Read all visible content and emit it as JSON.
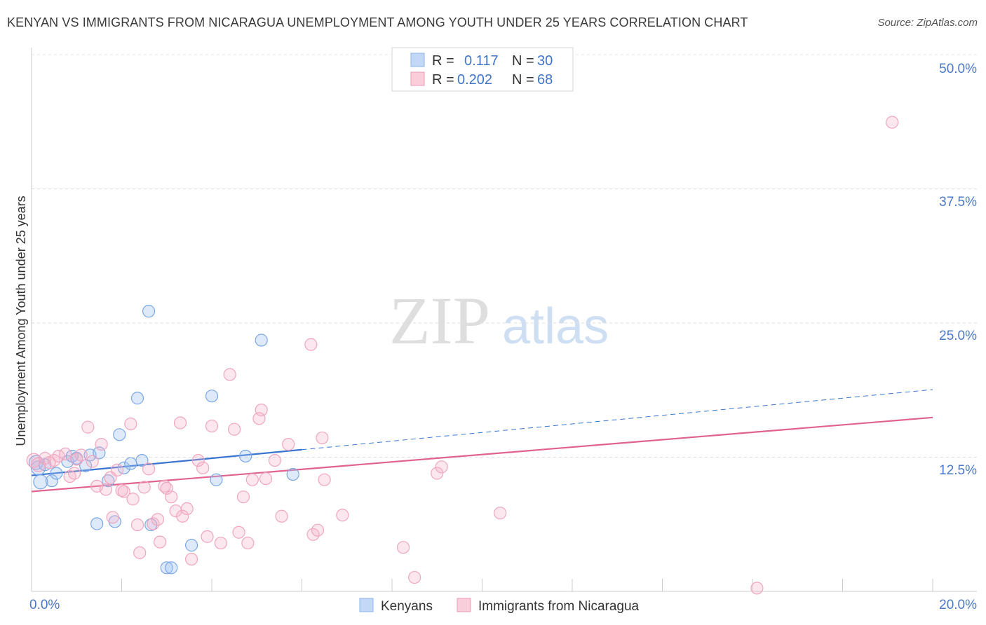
{
  "title": "KENYAN VS IMMIGRANTS FROM NICARAGUA UNEMPLOYMENT AMONG YOUTH UNDER 25 YEARS CORRELATION CHART",
  "source": "Source: ZipAtlas.com",
  "chart_data": {
    "type": "scatter",
    "ylabel": "Unemployment Among Youth under 25 years",
    "xlim": [
      0,
      20
    ],
    "ylim": [
      0,
      50
    ],
    "x_tick_labels": [
      "0.0%",
      "20.0%"
    ],
    "y_ticks": [
      12.5,
      25.0,
      37.5,
      50.0
    ],
    "y_tick_labels": [
      "12.5%",
      "25.0%",
      "37.5%",
      "50.0%"
    ],
    "watermark": {
      "zip": "ZIP",
      "atlas": "atlas"
    },
    "legend": {
      "r_label": "R =",
      "n_label": "N =",
      "entries": [
        {
          "name": "Kenyans",
          "r": "0.117",
          "n": "30",
          "color": "#8fb4ea",
          "fill": "#c3d8f6"
        },
        {
          "name": "Immigrants from Nicaragua",
          "r": "0.202",
          "n": "68",
          "color": "#ee9bb5",
          "fill": "#f9cdda"
        }
      ]
    },
    "series": [
      {
        "name": "Kenyans",
        "color": "#7aa7e6",
        "line_color": "#3a74d0",
        "trend": {
          "x0": 0,
          "y0": 10.8,
          "x1": 6.0,
          "y1": 13.2,
          "dash_x1": 20,
          "dash_y1": 18.8
        },
        "points": [
          [
            0.1,
            12.0
          ],
          [
            0.15,
            11.5
          ],
          [
            0.2,
            10.2
          ],
          [
            0.3,
            11.8
          ],
          [
            0.45,
            10.3
          ],
          [
            0.55,
            11.0
          ],
          [
            0.8,
            12.1
          ],
          [
            0.9,
            12.6
          ],
          [
            1.0,
            12.4
          ],
          [
            1.2,
            11.7
          ],
          [
            1.3,
            12.7
          ],
          [
            1.5,
            12.9
          ],
          [
            1.45,
            6.3
          ],
          [
            1.7,
            10.3
          ],
          [
            1.85,
            6.5
          ],
          [
            1.95,
            14.6
          ],
          [
            2.05,
            11.5
          ],
          [
            2.2,
            11.9
          ],
          [
            2.35,
            18.0
          ],
          [
            2.45,
            12.2
          ],
          [
            2.6,
            26.1
          ],
          [
            2.65,
            6.2
          ],
          [
            3.0,
            2.2
          ],
          [
            3.1,
            2.2
          ],
          [
            3.55,
            4.3
          ],
          [
            4.1,
            10.4
          ],
          [
            4.0,
            18.2
          ],
          [
            4.75,
            12.6
          ],
          [
            5.1,
            23.4
          ],
          [
            5.8,
            10.9
          ]
        ]
      },
      {
        "name": "Immigrants from Nicaragua",
        "color": "#f0a6be",
        "line_color": "#e0638f",
        "trend": {
          "x0": 0,
          "y0": 9.3,
          "x1": 20,
          "y1": 16.2
        },
        "points": [
          [
            0.05,
            12.2
          ],
          [
            0.15,
            11.8
          ],
          [
            0.3,
            12.4
          ],
          [
            0.4,
            12.0
          ],
          [
            0.5,
            12.2
          ],
          [
            0.6,
            12.6
          ],
          [
            0.75,
            12.8
          ],
          [
            0.85,
            10.7
          ],
          [
            0.95,
            11.0
          ],
          [
            1.0,
            12.3
          ],
          [
            1.1,
            12.7
          ],
          [
            1.25,
            15.3
          ],
          [
            1.35,
            12.1
          ],
          [
            1.45,
            9.8
          ],
          [
            1.55,
            13.7
          ],
          [
            1.65,
            9.5
          ],
          [
            1.75,
            10.6
          ],
          [
            1.8,
            6.9
          ],
          [
            1.9,
            11.3
          ],
          [
            2.0,
            9.4
          ],
          [
            2.05,
            9.3
          ],
          [
            2.2,
            15.6
          ],
          [
            2.25,
            8.6
          ],
          [
            2.35,
            6.2
          ],
          [
            2.4,
            3.6
          ],
          [
            2.5,
            9.7
          ],
          [
            2.6,
            11.4
          ],
          [
            2.7,
            6.3
          ],
          [
            2.8,
            6.7
          ],
          [
            2.85,
            4.6
          ],
          [
            2.95,
            9.8
          ],
          [
            3.0,
            9.6
          ],
          [
            3.1,
            8.8
          ],
          [
            3.2,
            7.5
          ],
          [
            3.3,
            15.7
          ],
          [
            3.35,
            7.0
          ],
          [
            3.45,
            7.7
          ],
          [
            3.55,
            3.0
          ],
          [
            3.7,
            12.2
          ],
          [
            3.8,
            11.5
          ],
          [
            3.9,
            5.1
          ],
          [
            4.0,
            15.4
          ],
          [
            4.2,
            4.5
          ],
          [
            4.4,
            20.2
          ],
          [
            4.5,
            15.1
          ],
          [
            4.6,
            5.5
          ],
          [
            4.7,
            8.8
          ],
          [
            4.8,
            4.5
          ],
          [
            4.9,
            10.4
          ],
          [
            5.1,
            16.9
          ],
          [
            5.05,
            16.1
          ],
          [
            5.2,
            10.5
          ],
          [
            5.4,
            12.2
          ],
          [
            5.55,
            7.0
          ],
          [
            5.7,
            13.7
          ],
          [
            6.2,
            23.0
          ],
          [
            6.25,
            5.3
          ],
          [
            6.35,
            5.7
          ],
          [
            6.45,
            14.3
          ],
          [
            6.5,
            10.4
          ],
          [
            6.9,
            7.1
          ],
          [
            8.25,
            4.1
          ],
          [
            8.5,
            1.3
          ],
          [
            9.0,
            11.0
          ],
          [
            9.1,
            11.6
          ],
          [
            10.4,
            7.3
          ],
          [
            16.1,
            0.3
          ],
          [
            19.1,
            43.7
          ]
        ]
      }
    ]
  }
}
